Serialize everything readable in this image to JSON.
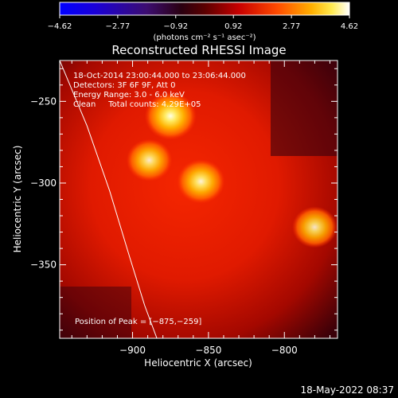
{
  "chart_data": {
    "type": "heatmap",
    "title": "Reconstructed RHESSI Image",
    "xlabel": "Heliocentric X (arcsec)",
    "ylabel": "Heliocentric Y (arcsec)",
    "xlim": [
      -948,
      -765
    ],
    "ylim": [
      -395,
      -225
    ],
    "x_ticks": [
      -900,
      -850,
      -800
    ],
    "y_ticks": [
      -250,
      -300,
      -350
    ],
    "x_tick_labels": [
      "−900",
      "−850",
      "−800"
    ],
    "y_tick_labels": [
      "−250",
      "−300",
      "−350"
    ],
    "colorbar": {
      "range": [
        -4.62,
        4.62
      ],
      "tick_values": [
        -4.62,
        -2.77,
        -0.92,
        0.92,
        2.77,
        4.62
      ],
      "tick_labels": [
        "−4.62",
        "−2.77",
        "−0.92",
        "0.92",
        "2.77",
        "4.62"
      ],
      "label": "(photons cm⁻² s⁻¹ asec⁻²)"
    },
    "sources": [
      {
        "x": -875,
        "y": -259,
        "peak": 4.62
      },
      {
        "x": -889,
        "y": -286,
        "peak": 3.5
      },
      {
        "x": -855,
        "y": -299,
        "peak": 3.9
      },
      {
        "x": -780,
        "y": -327,
        "peak": 3.3
      }
    ],
    "limb_curve": [
      [
        -948,
        -225
      ],
      [
        -930,
        -265
      ],
      [
        -915,
        -305
      ],
      [
        -902,
        -345
      ],
      [
        -892,
        -375
      ],
      [
        -884,
        -395
      ]
    ],
    "annotations": {
      "time_range": "18-Oct-2014 23:00:44.000 to 23:06:44.000",
      "detectors": "Detectors: 3F 6F 9F, Att 0",
      "energy_range": "Energy Range: 3.0 - 6.0 keV",
      "method_counts": "Clean     Total counts: 4.29E+05",
      "peak_position": "Position of Peak = [−875,−259]"
    },
    "grid": false
  },
  "footer": {
    "timestamp": "18-May-2022 08:37"
  }
}
